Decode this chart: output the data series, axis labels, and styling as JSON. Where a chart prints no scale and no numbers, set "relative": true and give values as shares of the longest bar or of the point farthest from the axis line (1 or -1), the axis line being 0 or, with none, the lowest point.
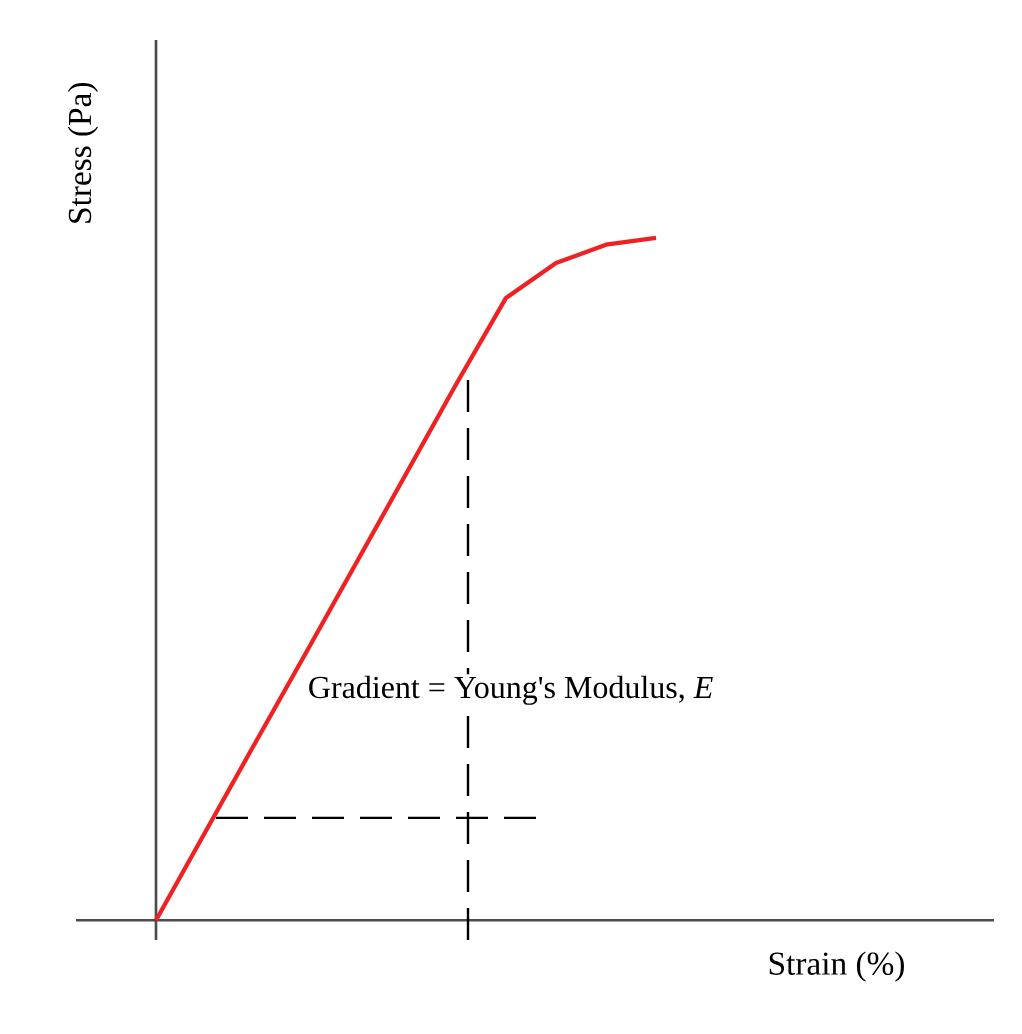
{
  "chart_data": {
    "type": "line",
    "relative": true,
    "xlabel": "Strain (%)",
    "ylabel": "Stress (Pa)",
    "annotations": [
      "Gradient = Young's Modulus, *E*"
    ],
    "ref_lines": [
      {
        "axis": "y",
        "value": 0.15,
        "color": "#000000",
        "line_style": "dashed"
      }
    ],
    "categories": [
      null,
      null,
      null,
      null,
      null,
      null,
      null,
      null,
      null,
      null,
      null
    ],
    "series": [
      {
        "color": "#ee2222",
        "values": [
          0,
          0.131,
          0.262,
          0.392,
          0.523,
          0.654,
          0.785,
          0.912,
          0.963,
          0.99,
          1
        ]
      }
    ]
  }
}
